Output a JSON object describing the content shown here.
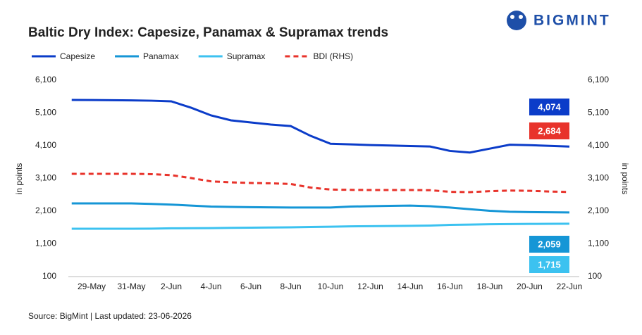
{
  "chart_data": {
    "type": "line",
    "title": "Baltic Dry Index: Capesize, Panamax & Supramax trends",
    "logo": "BIGMINT",
    "source": "Source: BigMint | Last updated: 23-06-2026",
    "y_label": "in points",
    "y2_label": "in points",
    "categories": [
      null,
      "29-May",
      null,
      "31-May",
      null,
      "2-Jun",
      null,
      "4-Jun",
      null,
      "6-Jun",
      null,
      "8-Jun",
      null,
      "10-Jun",
      null,
      "12-Jun",
      null,
      "14-Jun",
      null,
      "16-Jun",
      null,
      "18-Jun",
      null,
      "20-Jun",
      null,
      "22-Jun"
    ],
    "ylim": [
      100,
      6100
    ],
    "yticks": [
      100,
      {
        "value": 1100,
        "label": "1,100"
      },
      {
        "value": 2100,
        "label": "2,100"
      },
      {
        "value": 3100,
        "label": "3,100"
      },
      {
        "value": 4100,
        "label": "4,100"
      },
      {
        "value": 5100,
        "label": "5,100"
      },
      {
        "value": 6100,
        "label": "6,100"
      }
    ],
    "y2lim": [
      100,
      6100
    ],
    "y2ticks": [
      100,
      {
        "value": 1100,
        "label": "1,100"
      },
      {
        "value": 2100,
        "label": "2,100"
      },
      {
        "value": 3100,
        "label": "3,100"
      },
      {
        "value": 4100,
        "label": "4,100"
      },
      {
        "value": 5100,
        "label": "5,100"
      },
      {
        "value": 6100,
        "label": "6,100"
      }
    ],
    "series": [
      {
        "name": "Capesize",
        "color": "#0b3cc9",
        "dash": false,
        "values": [
          5498,
          5495,
          5490,
          5485,
          5475,
          5455,
          5260,
          5025,
          4875,
          4810,
          4745,
          4700,
          4400,
          4160,
          4140,
          4120,
          4105,
          4090,
          4075,
          3940,
          3890,
          4010,
          4130,
          4115,
          4095,
          4074
        ],
        "value_labels": [
          null,
          null,
          null,
          null,
          null,
          null,
          null,
          null,
          null,
          null,
          null,
          null,
          null,
          null,
          null,
          null,
          null,
          null,
          null,
          null,
          null,
          null,
          null,
          null,
          null,
          "4,074"
        ]
      },
      {
        "name": "Panamax",
        "color": "#1596d6",
        "dash": false,
        "values": [
          2336,
          2336,
          2336,
          2336,
          2320,
          2300,
          2270,
          2240,
          2230,
          2220,
          2215,
          2210,
          2210,
          2210,
          2240,
          2250,
          2260,
          2270,
          2250,
          2210,
          2160,
          2110,
          2080,
          2070,
          2065,
          2059
        ],
        "value_labels": [
          null,
          null,
          null,
          null,
          null,
          null,
          null,
          null,
          null,
          null,
          null,
          null,
          null,
          null,
          null,
          null,
          null,
          null,
          null,
          null,
          null,
          null,
          null,
          null,
          null,
          "2,059"
        ]
      },
      {
        "name": "Supramax",
        "color": "#3cc2f0",
        "dash": false,
        "values": [
          1562,
          1562,
          1562,
          1562,
          1565,
          1575,
          1578,
          1580,
          1590,
          1595,
          1600,
          1605,
          1615,
          1625,
          1635,
          1640,
          1645,
          1650,
          1660,
          1680,
          1690,
          1700,
          1705,
          1710,
          1712,
          1715
        ],
        "value_labels": [
          null,
          null,
          null,
          null,
          null,
          null,
          null,
          null,
          null,
          null,
          null,
          null,
          null,
          null,
          null,
          null,
          null,
          null,
          null,
          null,
          null,
          null,
          null,
          null,
          null,
          "1,715"
        ]
      },
      {
        "name": "BDI (RHS)",
        "color": "#e8332b",
        "dash": true,
        "axis": "y2",
        "values": [
          3240,
          3240,
          3240,
          3240,
          3230,
          3200,
          3110,
          3010,
          2980,
          2960,
          2950,
          2930,
          2820,
          2760,
          2750,
          2745,
          2745,
          2745,
          2740,
          2690,
          2680,
          2710,
          2730,
          2720,
          2700,
          2684
        ],
        "value_labels": [
          null,
          null,
          null,
          null,
          null,
          null,
          null,
          null,
          null,
          null,
          null,
          null,
          null,
          null,
          null,
          null,
          null,
          null,
          null,
          null,
          null,
          null,
          null,
          null,
          null,
          "2,684"
        ]
      }
    ]
  }
}
